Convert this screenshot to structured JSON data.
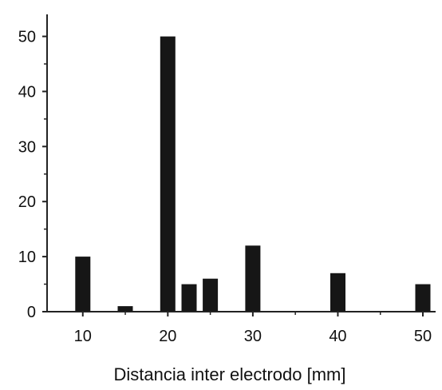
{
  "chart_data": {
    "type": "bar",
    "title": "",
    "xlabel": "Distancia inter electrodo [mm]",
    "ylabel": "",
    "x": [
      10,
      15,
      20,
      22.5,
      25,
      30,
      40,
      50
    ],
    "values": [
      10,
      1,
      50,
      5,
      6,
      12,
      7,
      5
    ],
    "xlim": [
      5.8,
      51.5
    ],
    "ylim": [
      0,
      54
    ],
    "xticks": [
      10,
      20,
      30,
      40,
      50
    ],
    "yticks": [
      0,
      10,
      20,
      30,
      40,
      50
    ],
    "grid": false,
    "legend": "none",
    "bar_color": "#161616",
    "axis_color": "#222222"
  }
}
